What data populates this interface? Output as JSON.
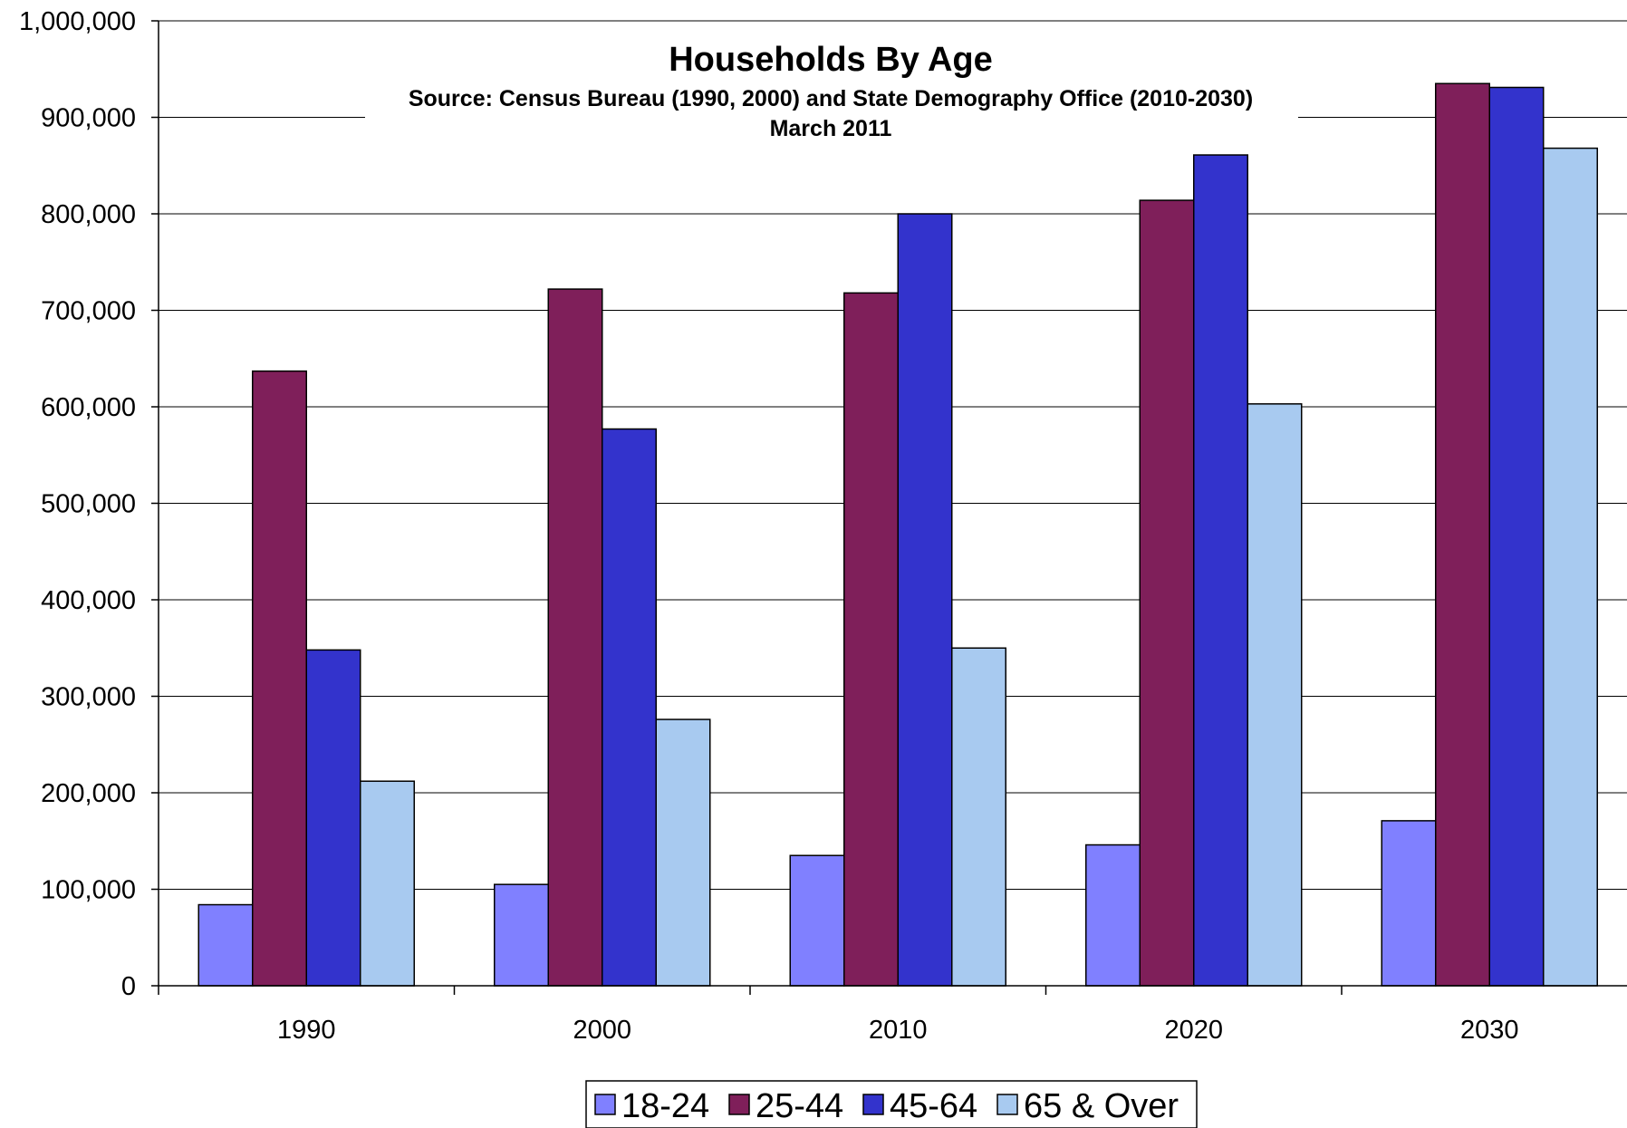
{
  "chart_data": {
    "type": "bar",
    "title": "Households By Age",
    "subtitle": "Source: Census Bureau (1990, 2000) and State Demography Office (2010-2030)",
    "subtitle2": "March 2011",
    "xlabel": "",
    "ylabel": "",
    "ylim": [
      0,
      1000000
    ],
    "yticks": [
      "0",
      "100,000",
      "200,000",
      "300,000",
      "400,000",
      "500,000",
      "600,000",
      "700,000",
      "800,000",
      "900,000",
      "1,000,000"
    ],
    "grid": true,
    "legend_position": "bottom-center",
    "categories": [
      "1990",
      "2000",
      "2010",
      "2020",
      "2030"
    ],
    "series": [
      {
        "name": "18-24",
        "color": "#8080ff",
        "values": [
          84000,
          105000,
          135000,
          146000,
          171000
        ]
      },
      {
        "name": "25-44",
        "color": "#7f1f5a",
        "values": [
          637000,
          722000,
          718000,
          814000,
          935000
        ]
      },
      {
        "name": "45-64",
        "color": "#3333cc",
        "values": [
          348000,
          577000,
          800000,
          861000,
          931000
        ]
      },
      {
        "name": "65 & Over",
        "color": "#a8caf0",
        "values": [
          212000,
          276000,
          350000,
          603000,
          868000
        ]
      }
    ]
  }
}
